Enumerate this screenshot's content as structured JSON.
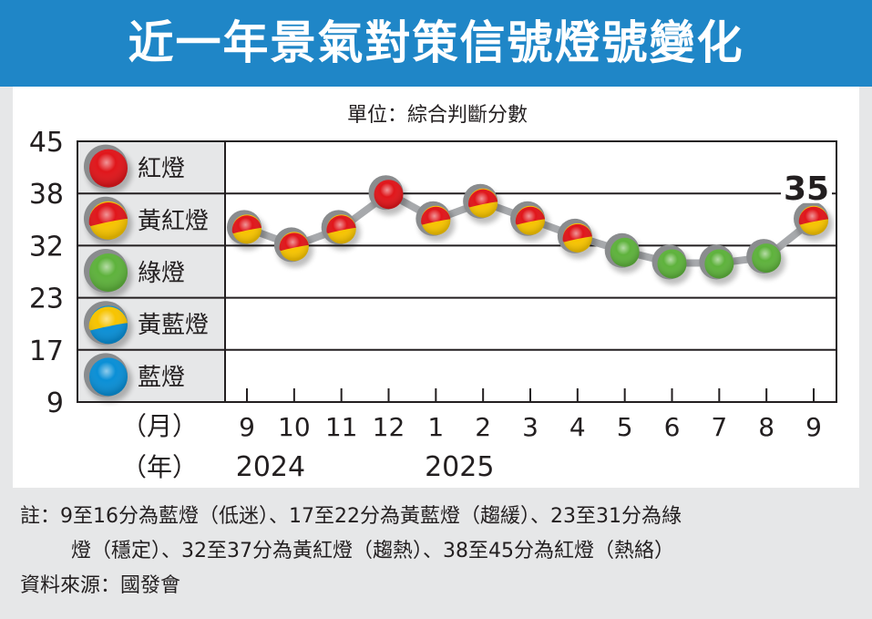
{
  "title": "近一年景氣對策信號燈號變化",
  "chart_data": {
    "type": "line",
    "title": "近一年景氣對策信號燈號變化",
    "unit_label": "單位：綜合判斷分數",
    "y_ticks": [
      9,
      17,
      23,
      32,
      38,
      45
    ],
    "ylim": [
      9,
      45
    ],
    "grid": true,
    "bands": [
      {
        "label": "紅燈",
        "from": 38,
        "to": 45,
        "colors": [
          "#e0161b"
        ]
      },
      {
        "label": "黃紅燈",
        "from": 32,
        "to": 38,
        "colors": [
          "#e0161b",
          "#f7c400"
        ]
      },
      {
        "label": "綠燈",
        "from": 23,
        "to": 32,
        "colors": [
          "#5eb23c"
        ]
      },
      {
        "label": "黃藍燈",
        "from": 17,
        "to": 23,
        "colors": [
          "#f7c400",
          "#0a8fd6"
        ]
      },
      {
        "label": "藍燈",
        "from": 9,
        "to": 17,
        "colors": [
          "#0a8fd6"
        ]
      }
    ],
    "month_axis_label": "（月）",
    "year_axis_label": "（年）",
    "categories": [
      "9",
      "10",
      "11",
      "12",
      "1",
      "2",
      "3",
      "4",
      "5",
      "6",
      "7",
      "8",
      "9"
    ],
    "years": [
      {
        "label": "2024",
        "at_index": 0.5
      },
      {
        "label": "2025",
        "at_index": 4.5
      }
    ],
    "values": [
      34,
      32,
      34,
      38,
      35,
      37,
      35,
      33,
      31,
      29,
      29,
      30,
      35
    ],
    "data_label_last": "35"
  },
  "notes": {
    "line1": "註：9至16分為藍燈（低迷）、17至22分為黃藍燈（趨緩）、23至31分為綠",
    "line2": "燈（穩定）、32至37分為黃紅燈（趨熱）、38至45分為紅燈（熱絡）",
    "source": "資料來源：國發會"
  }
}
